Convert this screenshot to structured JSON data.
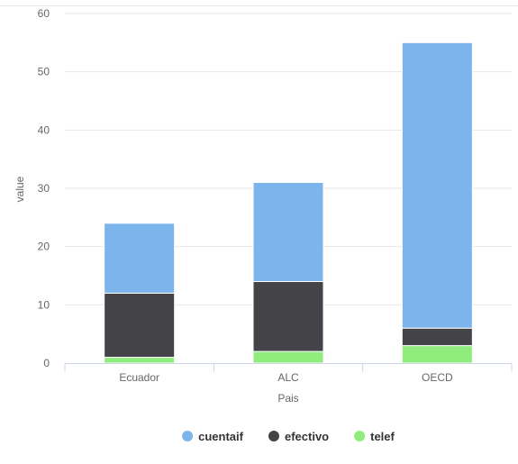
{
  "chart_data": {
    "type": "bar",
    "stacked": true,
    "categories": [
      "Ecuador",
      "ALC",
      "OECD"
    ],
    "series": [
      {
        "name": "cuentaif",
        "color": "#7cb5ec",
        "values": [
          12,
          17,
          49
        ]
      },
      {
        "name": "efectivo",
        "color": "#434348",
        "values": [
          11,
          12,
          3
        ]
      },
      {
        "name": "telef",
        "color": "#90ed7d",
        "values": [
          1,
          2,
          3
        ]
      }
    ],
    "xlabel": "Pais",
    "ylabel": "value",
    "ylim": [
      0,
      60
    ],
    "yticks": [
      0,
      10,
      20,
      30,
      40,
      50,
      60
    ],
    "grid": true,
    "legend": "bottom-center"
  }
}
